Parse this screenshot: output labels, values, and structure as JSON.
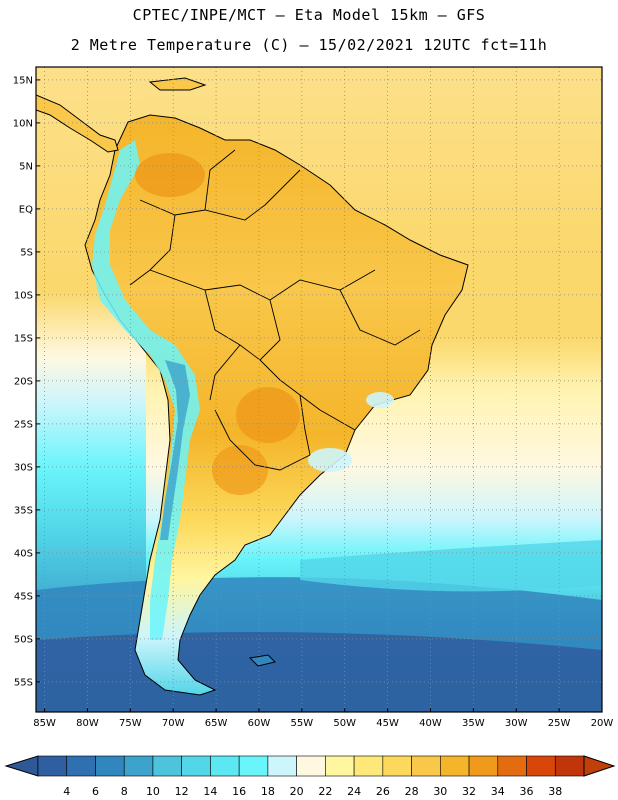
{
  "header": {
    "line1": "CPTEC/INPE/MCT –  Eta Model 15km – GFS",
    "line2": "2 Metre Temperature (C) – 15/02/2021 12UTC fct=11h"
  },
  "axes": {
    "lat_labels": [
      "15N",
      "10N",
      "5N",
      "EQ",
      "5S",
      "10S",
      "15S",
      "20S",
      "25S",
      "30S",
      "35S",
      "40S",
      "45S",
      "50S",
      "55S"
    ],
    "lat_values": [
      15,
      10,
      5,
      0,
      -5,
      -10,
      -15,
      -20,
      -25,
      -30,
      -35,
      -40,
      -45,
      -50,
      -55
    ],
    "lon_labels": [
      "85W",
      "80W",
      "75W",
      "70W",
      "65W",
      "60W",
      "55W",
      "50W",
      "45W",
      "40W",
      "35W",
      "30W",
      "25W",
      "20W"
    ],
    "lon_values": [
      -85,
      -80,
      -75,
      -70,
      -65,
      -60,
      -55,
      -50,
      -45,
      -40,
      -35,
      -30,
      -25,
      -20
    ],
    "lon_range": [
      -86,
      -20
    ],
    "lat_range": [
      -58.5,
      16.5
    ]
  },
  "colorbar": {
    "labels": [
      "4",
      "6",
      "8",
      "10",
      "12",
      "14",
      "16",
      "18",
      "20",
      "22",
      "24",
      "26",
      "28",
      "30",
      "32",
      "34",
      "36",
      "38"
    ],
    "colors": [
      "#2f5fa0",
      "#2e70b0",
      "#3186be",
      "#3da3cc",
      "#4ec3dc",
      "#52d6e8",
      "#5be8f2",
      "#6af5fb",
      "#cdf5fc",
      "#fff8e1",
      "#fff6a0",
      "#ffe87a",
      "#fcd95c",
      "#f9c74a",
      "#f4b52a",
      "#ef9a1a",
      "#e46c10",
      "#d8460a",
      "#c0360a"
    ],
    "arrow_left": "#2e5896",
    "arrow_right": "#c0400a"
  },
  "map": {
    "ocean_colors": {
      "north": "#fce08a",
      "tropical": "#fbd86c",
      "subtropical": "#fff3b0",
      "cool": "#cdf5fc",
      "cold": "#52d6e8",
      "colder": "#3da3cc",
      "coldest": "#2f5fa0"
    },
    "land_color": "#f9c74a"
  }
}
